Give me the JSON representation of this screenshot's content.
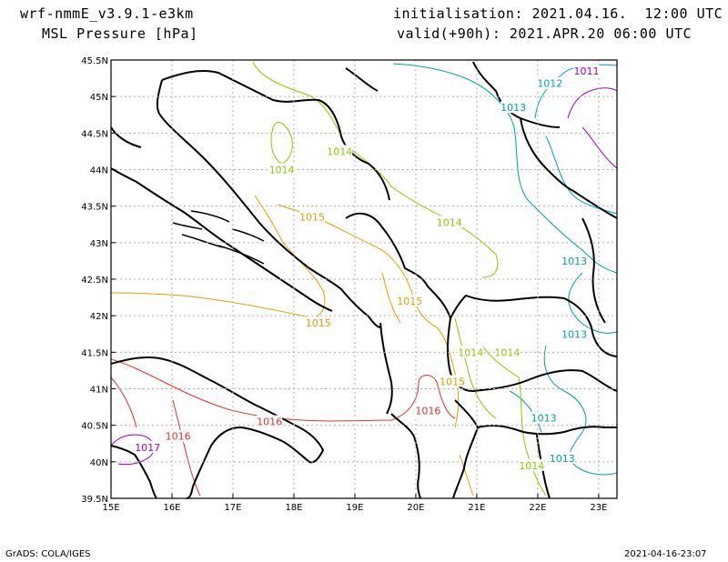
{
  "header": {
    "model": "wrf-nmmE_v3.9.1-e3km",
    "field": "MSL Pressure [hPa]",
    "init": "initialisation: 2021.04.16.  12:00 UTC",
    "valid": "valid(+90h): 2021.APR.20 06:00 UTC"
  },
  "footer": {
    "left": "GrADS: COLA/IGES",
    "right": "2021-04-16-23:07"
  },
  "axes": {
    "lon_labels": [
      "15E",
      "16E",
      "17E",
      "18E",
      "19E",
      "20E",
      "21E",
      "22E",
      "23E"
    ],
    "lat_labels": [
      "45.5N",
      "45N",
      "44.5N",
      "44N",
      "43.5N",
      "43N",
      "42.5N",
      "42N",
      "41.5N",
      "41N",
      "40.5N",
      "40N",
      "39.5N"
    ]
  },
  "map_data": {
    "type": "contour-map",
    "projection": "lat-lon",
    "lon_range": [
      15,
      23.3
    ],
    "lat_range": [
      39.5,
      45.5
    ],
    "grid": true,
    "contour_labels": [
      {
        "text": "1011",
        "lon": 22.8,
        "lat": 45.35,
        "color": "#a000c8"
      },
      {
        "text": "1012",
        "lon": 22.2,
        "lat": 45.18,
        "color": "#00a0c8"
      },
      {
        "text": "1013",
        "lon": 21.6,
        "lat": 44.85,
        "color": "#00a0a0"
      },
      {
        "text": "1013",
        "lon": 22.6,
        "lat": 42.75,
        "color": "#00a0a0"
      },
      {
        "text": "1013",
        "lon": 22.6,
        "lat": 41.75,
        "color": "#00a0a0"
      },
      {
        "text": "1013",
        "lon": 22.1,
        "lat": 40.6,
        "color": "#00a0a0"
      },
      {
        "text": "1013",
        "lon": 22.4,
        "lat": 40.05,
        "color": "#00a0a0"
      },
      {
        "text": "1014",
        "lon": 18.75,
        "lat": 44.25,
        "color": "#8cc800"
      },
      {
        "text": "1014",
        "lon": 17.8,
        "lat": 44.0,
        "color": "#8cc800"
      },
      {
        "text": "1014",
        "lon": 20.55,
        "lat": 43.28,
        "color": "#8cc800"
      },
      {
        "text": "1014",
        "lon": 20.9,
        "lat": 41.5,
        "color": "#8cc800"
      },
      {
        "text": "1014",
        "lon": 21.5,
        "lat": 41.5,
        "color": "#8cc800"
      },
      {
        "text": "1014",
        "lon": 21.9,
        "lat": 39.95,
        "color": "#8cc800"
      },
      {
        "text": "1015",
        "lon": 18.3,
        "lat": 43.35,
        "color": "#e0a000"
      },
      {
        "text": "1015",
        "lon": 19.9,
        "lat": 42.2,
        "color": "#e0a000"
      },
      {
        "text": "1015",
        "lon": 18.4,
        "lat": 41.9,
        "color": "#e0a000"
      },
      {
        "text": "1015",
        "lon": 20.6,
        "lat": 41.1,
        "color": "#e0a000"
      },
      {
        "text": "1016",
        "lon": 17.6,
        "lat": 40.55,
        "color": "#e03232"
      },
      {
        "text": "1016",
        "lon": 20.2,
        "lat": 40.7,
        "color": "#e03232"
      },
      {
        "text": "1016",
        "lon": 16.1,
        "lat": 40.35,
        "color": "#e03232"
      },
      {
        "text": "1017",
        "lon": 15.6,
        "lat": 40.2,
        "color": "#a000c8"
      }
    ]
  }
}
